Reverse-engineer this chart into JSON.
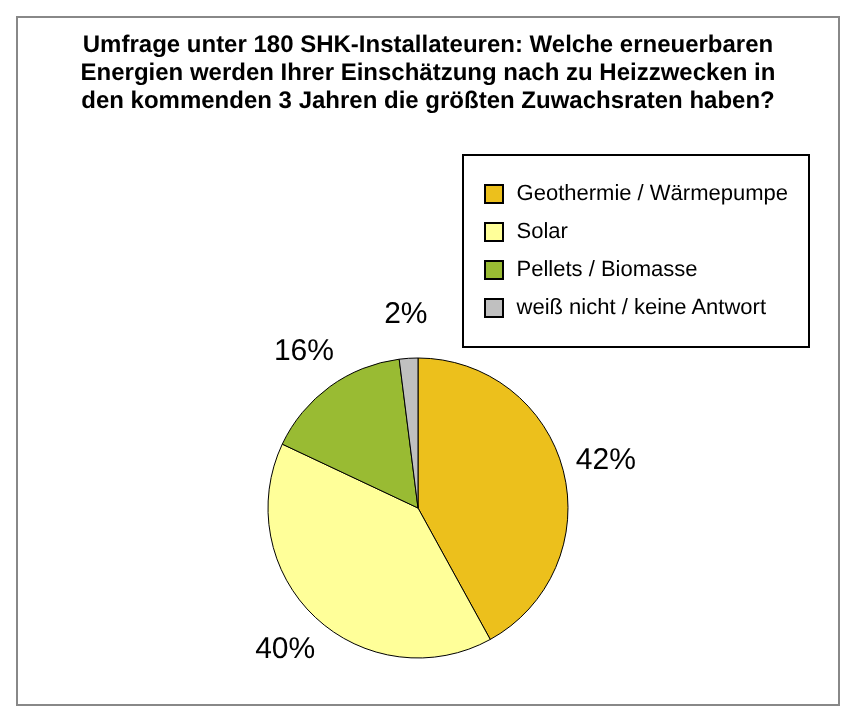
{
  "chart_data": {
    "type": "pie",
    "title": "Umfrage unter 180 SHK-Installateuren: Welche erneuerbaren Energien werden Ihrer Einschätzung nach zu Heizzwecken in den kommenden 3 Jahren die größten Zuwachsraten haben?",
    "categories": [
      "Geothermie / Wärmepumpe",
      "Solar",
      "Pellets / Biomasse",
      "weiß nicht / keine Antwort"
    ],
    "values": [
      42,
      40,
      16,
      2
    ],
    "value_labels": [
      "42%",
      "40%",
      "16%",
      "2%"
    ],
    "colors": [
      "#ecc01c",
      "#ffff99",
      "#99bb33",
      "#c0c0c0"
    ],
    "legend": "top right"
  }
}
